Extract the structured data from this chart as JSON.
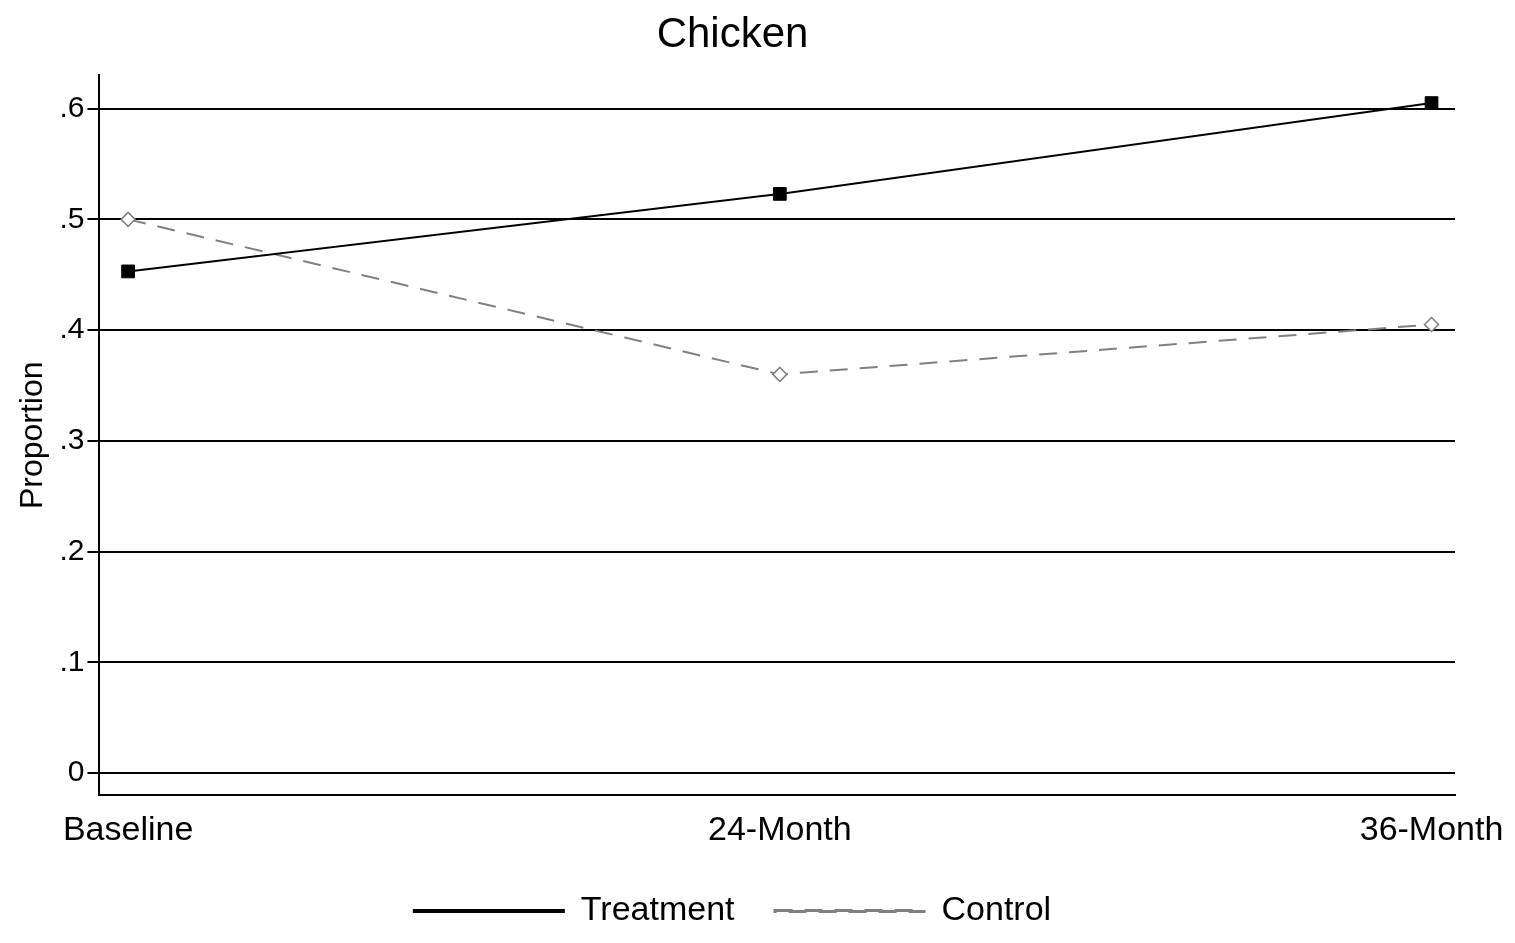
{
  "chart_data": {
    "type": "line",
    "title": "Chicken",
    "ylabel": "Proportion",
    "categories": [
      "Baseline",
      "24-Month",
      "36-Month"
    ],
    "series": [
      {
        "name": "Treatment",
        "color": "#000000",
        "values": [
          0.453,
          0.523,
          0.605
        ],
        "marker": "square",
        "line_style": "solid"
      },
      {
        "name": "Control",
        "color": "#808080",
        "values": [
          0.5,
          0.36,
          0.405
        ],
        "marker": "diamond",
        "line_style": "dashed"
      }
    ],
    "ylim": [
      -0.02,
      0.63
    ],
    "yticks": [
      {
        "value": 0,
        "label": "0"
      },
      {
        "value": 0.1,
        "label": ".1"
      },
      {
        "value": 0.2,
        "label": ".2"
      },
      {
        "value": 0.3,
        "label": ".3"
      },
      {
        "value": 0.4,
        "label": ".4"
      },
      {
        "value": 0.5,
        "label": ".5"
      },
      {
        "value": 0.6,
        "label": ".6"
      }
    ],
    "grid": "y",
    "legend": "bottom"
  }
}
